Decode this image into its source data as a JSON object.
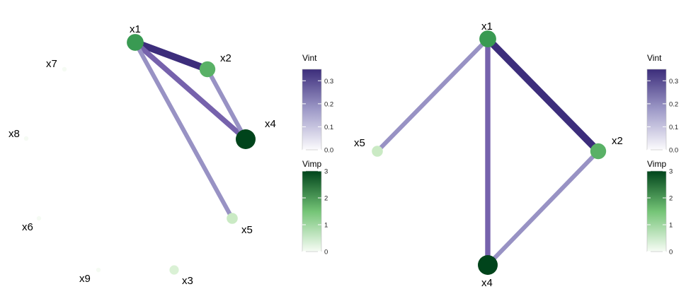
{
  "panels": [
    {
      "id": "left",
      "nodes": [
        {
          "label": "x1",
          "importance": 2.05
        },
        {
          "label": "x2",
          "importance": 1.75
        },
        {
          "label": "x4",
          "importance": 3.0
        },
        {
          "label": "x5",
          "importance": 0.7
        },
        {
          "label": "x3",
          "importance": 0.45
        },
        {
          "label": "x7",
          "importance": 0.03
        },
        {
          "label": "x8",
          "importance": 0.03
        },
        {
          "label": "x6",
          "importance": 0.03
        },
        {
          "label": "x9",
          "importance": 0.03
        }
      ],
      "edges": [
        {
          "from": "x1",
          "to": "x2",
          "interaction": 0.35
        },
        {
          "from": "x1",
          "to": "x4",
          "interaction": 0.2
        },
        {
          "from": "x1",
          "to": "x5",
          "interaction": 0.12
        },
        {
          "from": "x2",
          "to": "x4",
          "interaction": 0.12
        }
      ]
    },
    {
      "id": "right",
      "nodes": [
        {
          "label": "x1",
          "importance": 2.05
        },
        {
          "label": "x2",
          "importance": 1.75
        },
        {
          "label": "x4",
          "importance": 3.0
        },
        {
          "label": "x5",
          "importance": 0.7
        }
      ],
      "edges": [
        {
          "from": "x1",
          "to": "x2",
          "interaction": 0.35
        },
        {
          "from": "x1",
          "to": "x4",
          "interaction": 0.2
        },
        {
          "from": "x1",
          "to": "x5",
          "interaction": 0.12
        },
        {
          "from": "x2",
          "to": "x4",
          "interaction": 0.12
        }
      ]
    }
  ],
  "legends": {
    "vint": {
      "title": "Vint",
      "min": 0,
      "max": 0.35,
      "ticks": [
        "0.0",
        "0.1",
        "0.2",
        "0.3"
      ],
      "colors": [
        "#ffffff",
        "#3c2d7b"
      ]
    },
    "vimp": {
      "title": "Vimp",
      "min": 0,
      "max": 3,
      "ticks": [
        "0",
        "1",
        "2",
        "3"
      ],
      "colors": [
        "#ffffff",
        "#00441b"
      ]
    }
  }
}
